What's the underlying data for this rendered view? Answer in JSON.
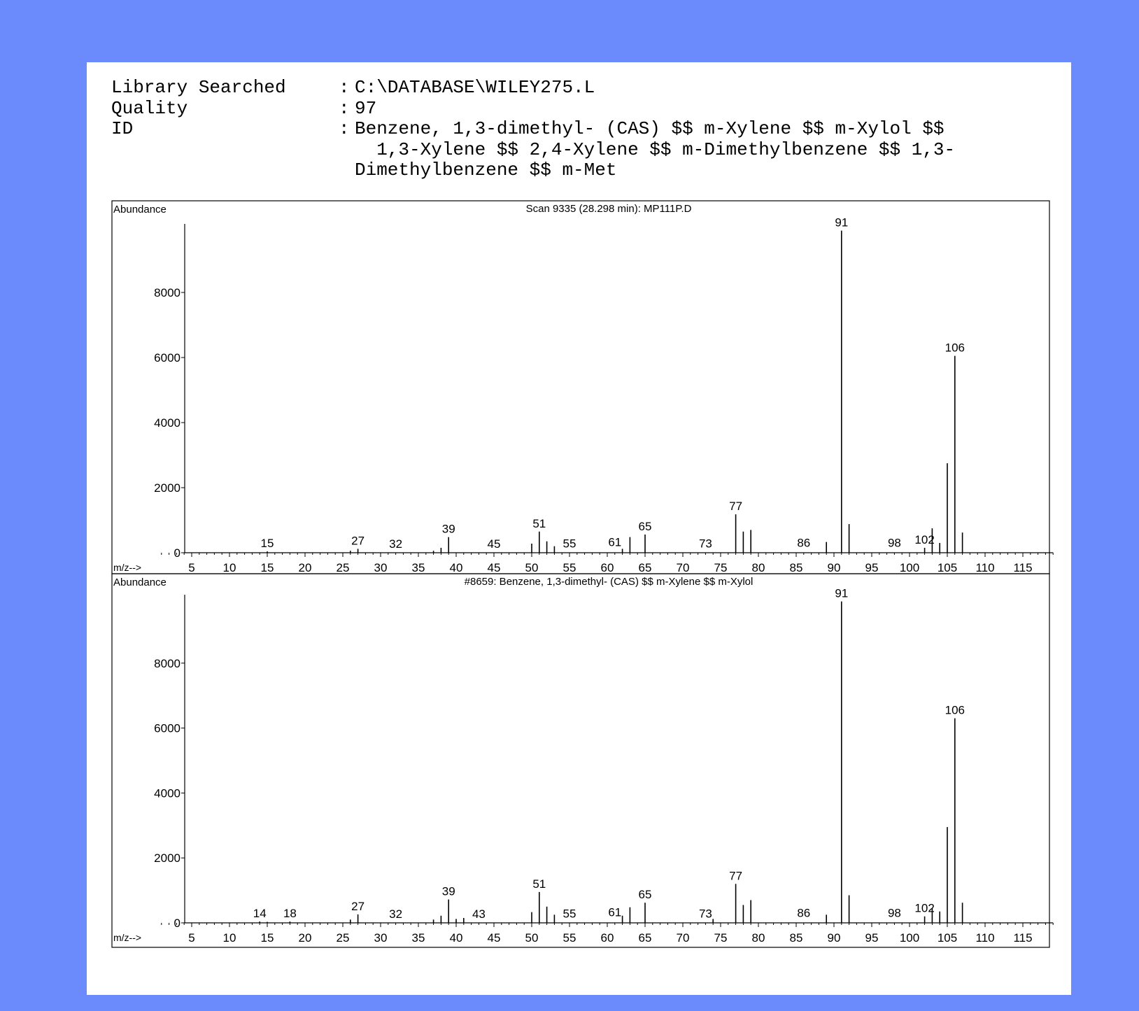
{
  "header": {
    "library_label": "Library Searched",
    "library_value": "C:\\DATABASE\\WILEY275.L",
    "quality_label": "Quality",
    "quality_value": "97",
    "id_label": "ID",
    "id_lines": [
      "Benzene, 1,3-dimethyl- (CAS) $$ m-Xylene $$ m-Xylol $$",
      "  1,3-Xylene $$ 2,4-Xylene $$ m-Dimethylbenzene $$ 1,3-",
      "Dimethylbenzene $$ m-Met"
    ],
    "separator": ":"
  },
  "chart_data": [
    {
      "type": "bar",
      "title": "Scan 9335 (28.298 min): MP111P.D",
      "ylabel": "Abundance",
      "xlabel": "m/z-->",
      "xlim": [
        1,
        119
      ],
      "ylim": [
        0,
        10000
      ],
      "yticks": [
        0,
        2000,
        4000,
        6000,
        8000
      ],
      "xticks": [
        5,
        10,
        15,
        20,
        25,
        30,
        35,
        40,
        45,
        50,
        55,
        60,
        65,
        70,
        75,
        80,
        85,
        90,
        95,
        100,
        105,
        110,
        115
      ],
      "peaks": [
        {
          "x": 15,
          "y": 40
        },
        {
          "x": 26,
          "y": 60
        },
        {
          "x": 27,
          "y": 120
        },
        {
          "x": 37,
          "y": 60
        },
        {
          "x": 38,
          "y": 150
        },
        {
          "x": 39,
          "y": 480
        },
        {
          "x": 50,
          "y": 280
        },
        {
          "x": 51,
          "y": 650
        },
        {
          "x": 52,
          "y": 350
        },
        {
          "x": 53,
          "y": 200
        },
        {
          "x": 62,
          "y": 120
        },
        {
          "x": 63,
          "y": 480
        },
        {
          "x": 65,
          "y": 560
        },
        {
          "x": 77,
          "y": 1180
        },
        {
          "x": 78,
          "y": 650
        },
        {
          "x": 79,
          "y": 700
        },
        {
          "x": 89,
          "y": 330
        },
        {
          "x": 91,
          "y": 9900
        },
        {
          "x": 92,
          "y": 880
        },
        {
          "x": 102,
          "y": 150
        },
        {
          "x": 103,
          "y": 750
        },
        {
          "x": 104,
          "y": 300
        },
        {
          "x": 105,
          "y": 2750
        },
        {
          "x": 106,
          "y": 6050
        },
        {
          "x": 107,
          "y": 620
        }
      ],
      "peak_labels": [
        {
          "x": 15,
          "text": "15",
          "y": 40
        },
        {
          "x": 27,
          "text": "27",
          "y": 120
        },
        {
          "x": 32,
          "text": "32",
          "y": 20
        },
        {
          "x": 39,
          "text": "39",
          "y": 480
        },
        {
          "x": 45,
          "text": "45",
          "y": 20
        },
        {
          "x": 51,
          "text": "51",
          "y": 650
        },
        {
          "x": 55,
          "text": "55",
          "y": 30
        },
        {
          "x": 61,
          "text": "61",
          "y": 80
        },
        {
          "x": 65,
          "text": "65",
          "y": 560
        },
        {
          "x": 73,
          "text": "73",
          "y": 30
        },
        {
          "x": 77,
          "text": "77",
          "y": 1180
        },
        {
          "x": 86,
          "text": "86",
          "y": 50
        },
        {
          "x": 91,
          "text": "91",
          "y": 9900
        },
        {
          "x": 98,
          "text": "98",
          "y": 50
        },
        {
          "x": 102,
          "text": "102",
          "y": 150
        },
        {
          "x": 106,
          "text": "106",
          "y": 6050
        }
      ]
    },
    {
      "type": "bar",
      "title": "#8659: Benzene, 1,3-dimethyl- (CAS) $$ m-Xylene $$ m-Xylol",
      "ylabel": "Abundance",
      "xlabel": "m/z-->",
      "xlim": [
        1,
        119
      ],
      "ylim": [
        0,
        10000
      ],
      "yticks": [
        0,
        2000,
        4000,
        6000,
        8000
      ],
      "xticks": [
        5,
        10,
        15,
        20,
        25,
        30,
        35,
        40,
        45,
        50,
        55,
        60,
        65,
        70,
        75,
        80,
        85,
        90,
        95,
        100,
        105,
        110,
        115
      ],
      "peaks": [
        {
          "x": 14,
          "y": 40
        },
        {
          "x": 15,
          "y": 30
        },
        {
          "x": 18,
          "y": 40
        },
        {
          "x": 26,
          "y": 100
        },
        {
          "x": 27,
          "y": 260
        },
        {
          "x": 37,
          "y": 100
        },
        {
          "x": 38,
          "y": 220
        },
        {
          "x": 39,
          "y": 720
        },
        {
          "x": 40,
          "y": 120
        },
        {
          "x": 41,
          "y": 150
        },
        {
          "x": 50,
          "y": 330
        },
        {
          "x": 51,
          "y": 950
        },
        {
          "x": 52,
          "y": 500
        },
        {
          "x": 53,
          "y": 250
        },
        {
          "x": 62,
          "y": 220
        },
        {
          "x": 63,
          "y": 480
        },
        {
          "x": 65,
          "y": 620
        },
        {
          "x": 74,
          "y": 120
        },
        {
          "x": 77,
          "y": 1200
        },
        {
          "x": 78,
          "y": 550
        },
        {
          "x": 79,
          "y": 700
        },
        {
          "x": 89,
          "y": 250
        },
        {
          "x": 91,
          "y": 9900
        },
        {
          "x": 92,
          "y": 850
        },
        {
          "x": 102,
          "y": 200
        },
        {
          "x": 103,
          "y": 450
        },
        {
          "x": 104,
          "y": 350
        },
        {
          "x": 105,
          "y": 2950
        },
        {
          "x": 106,
          "y": 6300
        },
        {
          "x": 107,
          "y": 620
        }
      ],
      "peak_labels": [
        {
          "x": 14,
          "text": "14",
          "y": 40
        },
        {
          "x": 18,
          "text": "18",
          "y": 40
        },
        {
          "x": 27,
          "text": "27",
          "y": 260
        },
        {
          "x": 32,
          "text": "32",
          "y": 20
        },
        {
          "x": 39,
          "text": "39",
          "y": 720
        },
        {
          "x": 43,
          "text": "43",
          "y": 20
        },
        {
          "x": 51,
          "text": "51",
          "y": 950
        },
        {
          "x": 55,
          "text": "55",
          "y": 30
        },
        {
          "x": 61,
          "text": "61",
          "y": 80
        },
        {
          "x": 65,
          "text": "65",
          "y": 620
        },
        {
          "x": 73,
          "text": "73",
          "y": 30
        },
        {
          "x": 77,
          "text": "77",
          "y": 1200
        },
        {
          "x": 86,
          "text": "86",
          "y": 50
        },
        {
          "x": 91,
          "text": "91",
          "y": 9900
        },
        {
          "x": 98,
          "text": "98",
          "y": 50
        },
        {
          "x": 102,
          "text": "102",
          "y": 200
        },
        {
          "x": 106,
          "text": "106",
          "y": 6300
        }
      ]
    }
  ]
}
